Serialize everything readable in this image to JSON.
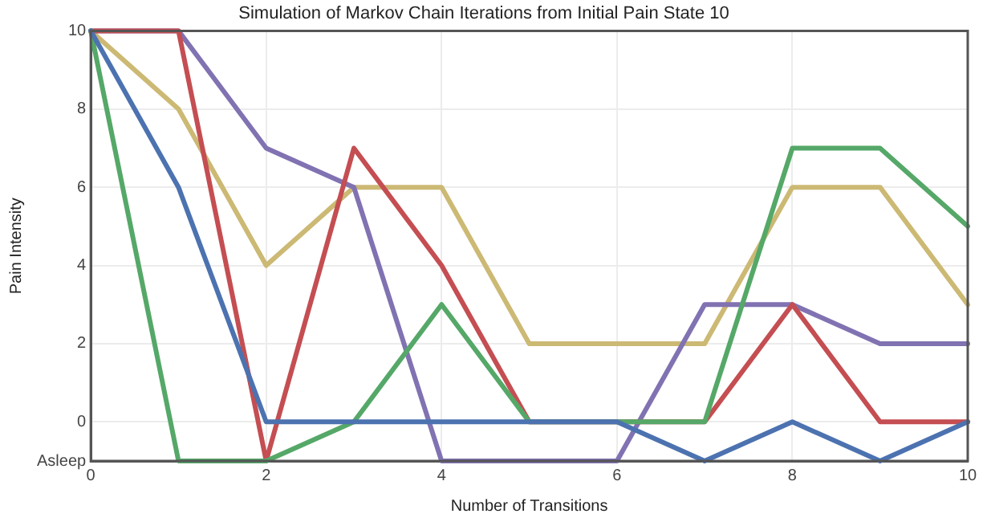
{
  "chart_data": {
    "type": "line",
    "title": "Simulation of Markov Chain Iterations from Initial Pain State 10",
    "xlabel": "Number of Transitions",
    "ylabel": "Pain Intensity",
    "x": [
      0,
      1,
      2,
      3,
      4,
      5,
      6,
      7,
      8,
      9,
      10
    ],
    "series": [
      {
        "color": "#4c72b0",
        "values": [
          10,
          6,
          0,
          0,
          0,
          0,
          0,
          -1,
          0,
          -1,
          0
        ]
      },
      {
        "color": "#55a868",
        "values": [
          10,
          -1,
          -1,
          0,
          3,
          0,
          0,
          0,
          7,
          7,
          5
        ]
      },
      {
        "color": "#c44e52",
        "values": [
          10,
          10,
          -1,
          7,
          4,
          0,
          0,
          0,
          3,
          0,
          0
        ]
      },
      {
        "color": "#8172b2",
        "values": [
          10,
          10,
          7,
          6,
          -1,
          -1,
          -1,
          3,
          3,
          2,
          2
        ]
      },
      {
        "color": "#ccb974",
        "values": [
          10,
          8,
          4,
          6,
          6,
          2,
          2,
          2,
          6,
          6,
          3
        ]
      }
    ],
    "xlim": [
      0,
      10
    ],
    "xticks": [
      0,
      2,
      4,
      6,
      8,
      10
    ],
    "ylim": [
      -1,
      10
    ],
    "yticks": [
      {
        "value": -1,
        "label": "Asleep"
      },
      0,
      2,
      4,
      6,
      8,
      10
    ],
    "grid": true,
    "legend": false,
    "marker": "none",
    "line_style": "solid"
  }
}
